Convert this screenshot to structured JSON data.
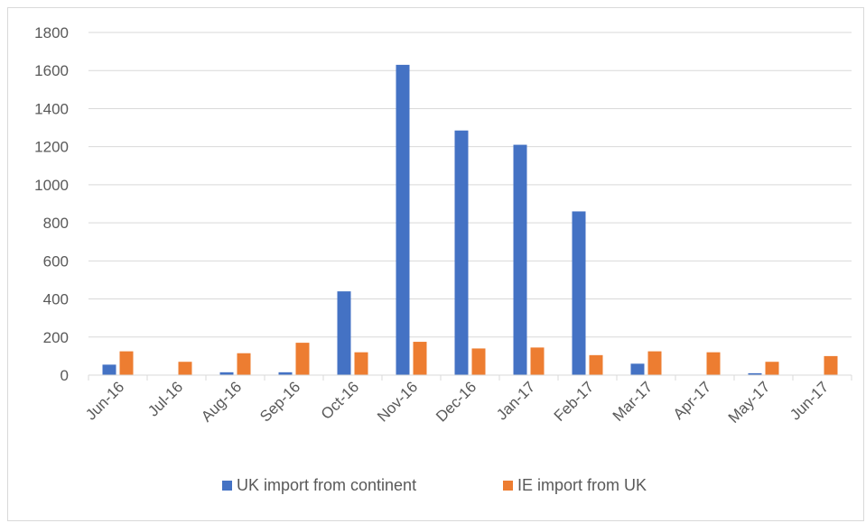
{
  "chart_data": {
    "type": "bar",
    "categories": [
      "Jun-16",
      "Jul-16",
      "Aug-16",
      "Sep-16",
      "Oct-16",
      "Nov-16",
      "Dec-16",
      "Jan-17",
      "Feb-17",
      "Mar-17",
      "Apr-17",
      "May-17",
      "Jun-17"
    ],
    "series": [
      {
        "name": "UK import from continent",
        "color": "#4472c4",
        "values": [
          55,
          0,
          15,
          15,
          440,
          1630,
          1285,
          1210,
          860,
          60,
          0,
          10,
          0
        ]
      },
      {
        "name": "IE import from UK",
        "color": "#ed7d31",
        "values": [
          125,
          70,
          115,
          170,
          120,
          175,
          140,
          145,
          105,
          125,
          120,
          70,
          100
        ]
      }
    ],
    "title": "",
    "xlabel": "",
    "ylabel": "",
    "ylim": [
      0,
      1800
    ],
    "yticks": [
      0,
      200,
      400,
      600,
      800,
      1000,
      1200,
      1400,
      1600,
      1800
    ],
    "grid": true,
    "legend_position": "bottom"
  }
}
